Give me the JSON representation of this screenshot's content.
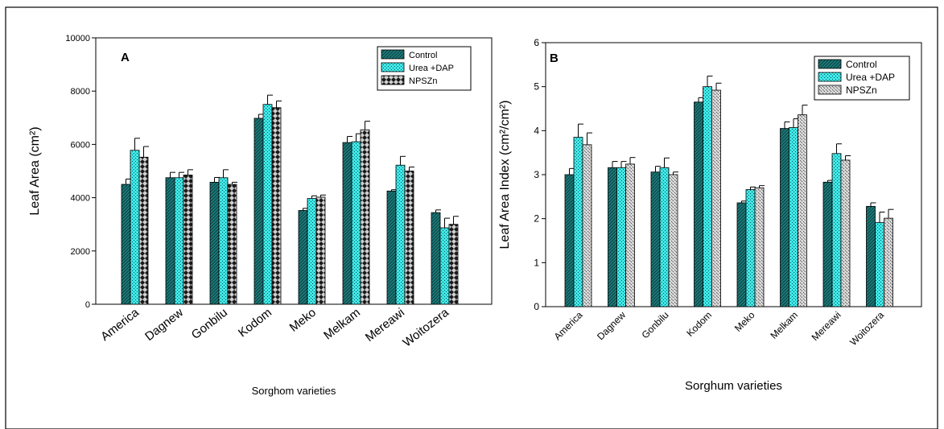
{
  "figure": {
    "background": "#ffffff",
    "border": "#000000"
  },
  "chart_data": [
    {
      "type": "bar",
      "panel_label": "A",
      "title": "",
      "xlabel": "Sorghom varieties",
      "ylabel": "Leaf Area (cm²)",
      "ylim": [
        0,
        10000
      ],
      "yticks": [
        0,
        2000,
        4000,
        6000,
        8000,
        10000
      ],
      "grid": false,
      "legend_position": "top-right",
      "categories": [
        "America",
        "Dagnew",
        "Gonbilu",
        "Kodom",
        "Meko",
        "Melkam",
        "Mereawi",
        "Woitozera"
      ],
      "series": [
        {
          "name": "Control",
          "color": "#1e7c7c",
          "pattern": "diagonal",
          "values": [
            4500,
            4750,
            4580,
            6980,
            3520,
            6070,
            4250,
            3440
          ],
          "errors": [
            200,
            200,
            180,
            150,
            80,
            230,
            50,
            100
          ]
        },
        {
          "name": "Urea +DAP",
          "color": "#3fe8e8",
          "pattern": "dots",
          "values": [
            5780,
            4750,
            4750,
            7500,
            3970,
            6100,
            5220,
            2870
          ],
          "errors": [
            450,
            200,
            300,
            350,
            100,
            300,
            330,
            360
          ]
        },
        {
          "name": "NPSZn",
          "color": "#b0b0b0",
          "pattern": "diamond",
          "values": [
            5520,
            4850,
            4500,
            7380,
            4020,
            6550,
            5000,
            3000
          ],
          "errors": [
            400,
            200,
            80,
            250,
            80,
            320,
            150,
            300
          ]
        }
      ]
    },
    {
      "type": "bar",
      "panel_label": "B",
      "title": "",
      "xlabel": "Sorghum varieties",
      "ylabel": "Leaf Area Index (cm²/cm²)",
      "ylim": [
        0,
        6
      ],
      "yticks": [
        0,
        1,
        2,
        3,
        4,
        5,
        6
      ],
      "grid": false,
      "legend_position": "top-right",
      "categories": [
        "America",
        "Dagnew",
        "Gonbilu",
        "Kodom",
        "Meko",
        "Melkam",
        "Mereawi",
        "Woitozera"
      ],
      "series": [
        {
          "name": "Control",
          "color": "#1e7c7c",
          "pattern": "diagonal",
          "values": [
            3.0,
            3.16,
            3.06,
            4.65,
            2.36,
            4.05,
            2.83,
            2.28
          ],
          "errors": [
            0.14,
            0.14,
            0.13,
            0.1,
            0.04,
            0.15,
            0.04,
            0.08
          ]
        },
        {
          "name": "Urea +DAP",
          "color": "#3fe8e8",
          "pattern": "dots",
          "values": [
            3.85,
            3.16,
            3.16,
            5.0,
            2.66,
            4.07,
            3.48,
            1.91
          ],
          "errors": [
            0.3,
            0.14,
            0.22,
            0.24,
            0.06,
            0.2,
            0.22,
            0.24
          ]
        },
        {
          "name": "NPSZn",
          "color": "#c8c8c8",
          "pattern": "speckle",
          "values": [
            3.68,
            3.24,
            3.0,
            4.92,
            2.7,
            4.36,
            3.33,
            2.01
          ],
          "errors": [
            0.27,
            0.15,
            0.06,
            0.16,
            0.05,
            0.22,
            0.1,
            0.2
          ]
        }
      ]
    }
  ]
}
